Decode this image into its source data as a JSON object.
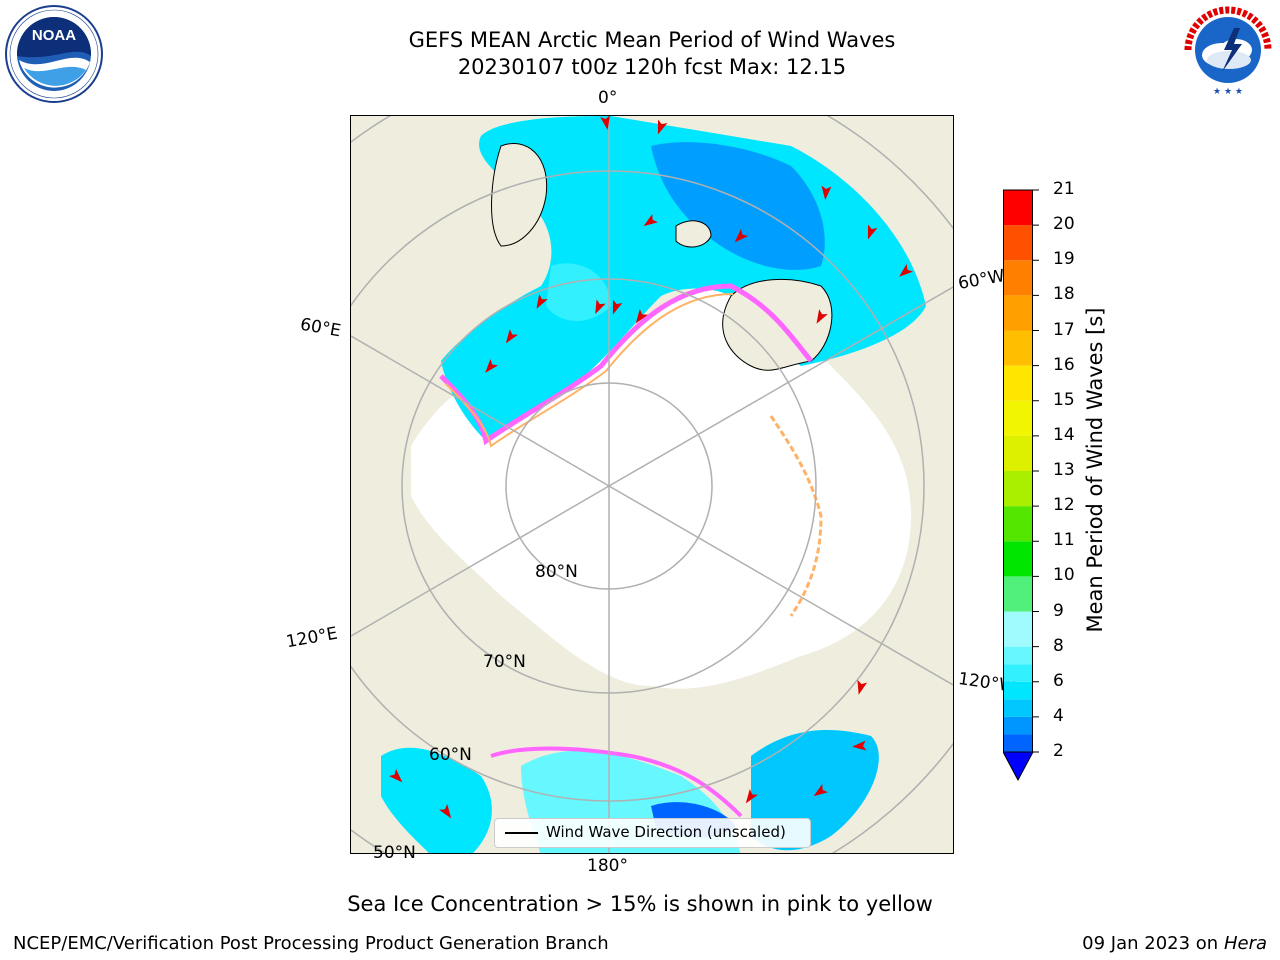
{
  "header": {
    "title_line1": "GEFS MEAN Arctic Mean Period of Wind Waves",
    "title_line2": "20230107 t00z 120h fcst   Max: 12.15"
  },
  "logos": {
    "left": {
      "name": "NOAA",
      "text": "NOAA",
      "ring_text": "NATIONAL OCEANIC AND ATMOSPHERIC ADMINISTRATION · U.S. DEPARTMENT OF COMMERCE"
    },
    "right": {
      "name": "National Weather Service",
      "ring_text": "NATIONAL WEATHER SERVICE"
    }
  },
  "map": {
    "projection": "north polar stereographic",
    "grid_labels": {
      "lon_0": "0°",
      "lon_60w": "60°W",
      "lon_60e": "60°E",
      "lon_120e": "120°E",
      "lon_120w": "120°W",
      "lon_180": "180°",
      "lat_80": "80°N",
      "lat_70": "70°N",
      "lat_60": "60°N",
      "lat_50": "50°N"
    },
    "colors": {
      "land": "#efedde",
      "ocean_ice_free_background": "#ffffff",
      "ice_edge": [
        "#ff66ff",
        "#ffb266",
        "#ffff66"
      ],
      "gridlines": "#b0b0b0",
      "arrows": "#e00000"
    },
    "legend_label": "Wind Wave Direction (unscaled)"
  },
  "colorbar": {
    "label": "Mean Period of Wind Waves [s]",
    "ticks": [
      "2",
      "4",
      "6",
      "8",
      "9",
      "10",
      "11",
      "12",
      "13",
      "14",
      "15",
      "16",
      "17",
      "18",
      "19",
      "20",
      "21"
    ],
    "bins": [
      {
        "from": 2,
        "to": 3,
        "color": "#0064ff"
      },
      {
        "from": 3,
        "to": 4,
        "color": "#0096ff"
      },
      {
        "from": 4,
        "to": 5,
        "color": "#00c8ff"
      },
      {
        "from": 5,
        "to": 6,
        "color": "#00e6ff"
      },
      {
        "from": 6,
        "to": 7,
        "color": "#33f0ff"
      },
      {
        "from": 7,
        "to": 8,
        "color": "#66f7ff"
      },
      {
        "from": 8,
        "to": 9,
        "color": "#a0fbff"
      },
      {
        "from": 9,
        "to": 10,
        "color": "#50f07a"
      },
      {
        "from": 10,
        "to": 11,
        "color": "#00e600"
      },
      {
        "from": 11,
        "to": 12,
        "color": "#55e600"
      },
      {
        "from": 12,
        "to": 13,
        "color": "#aaee00"
      },
      {
        "from": 13,
        "to": 14,
        "color": "#dcf000"
      },
      {
        "from": 14,
        "to": 15,
        "color": "#f2f500"
      },
      {
        "from": 15,
        "to": 16,
        "color": "#ffe600"
      },
      {
        "from": 16,
        "to": 17,
        "color": "#ffbe00"
      },
      {
        "from": 17,
        "to": 18,
        "color": "#ffa000"
      },
      {
        "from": 18,
        "to": 19,
        "color": "#ff8000"
      },
      {
        "from": 19,
        "to": 20,
        "color": "#ff5000"
      },
      {
        "from": 20,
        "to": 21,
        "color": "#ff0000"
      }
    ],
    "extend_below_color": "#0000ff"
  },
  "note": "Sea Ice Concentration > 15% is shown in pink to yellow",
  "footer": {
    "left": "NCEP/EMC/Verification Post Processing Product Generation Branch",
    "right_date": "09 Jan 2023 on ",
    "right_machine": "Hera"
  }
}
